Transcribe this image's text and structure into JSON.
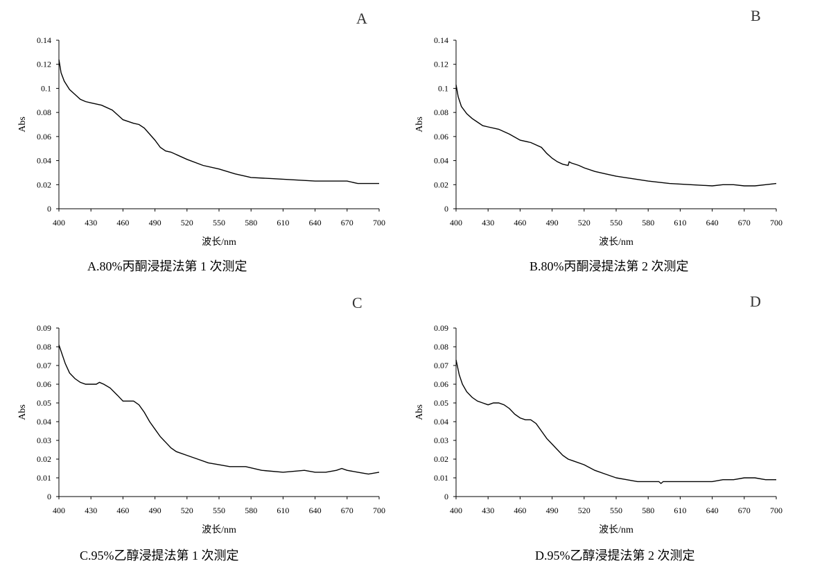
{
  "chart_data": [
    {
      "type": "line",
      "panel": "A",
      "caption": "A.80%丙酮浸提法第 1 次测定",
      "xlabel": "波长/nm",
      "ylabel": "Abs",
      "xlim": [
        400,
        700
      ],
      "ylim": [
        0,
        0.14
      ],
      "xticks": [
        400,
        430,
        460,
        490,
        520,
        550,
        580,
        610,
        640,
        670,
        700
      ],
      "yticks": [
        0,
        0.02,
        0.04,
        0.06,
        0.08,
        0.1,
        0.12,
        0.14
      ],
      "ytick_labels": [
        "0",
        "0.02",
        "0.04",
        "0.06",
        "0.08",
        "0.1",
        "0.12",
        "0.14"
      ],
      "series": [
        {
          "x": [
            400,
            402,
            405,
            410,
            415,
            420,
            425,
            430,
            440,
            450,
            455,
            460,
            470,
            475,
            480,
            485,
            490,
            495,
            500,
            505,
            520,
            535,
            550,
            565,
            580,
            600,
            620,
            640,
            660,
            670,
            680,
            700
          ],
          "y": [
            0.124,
            0.113,
            0.106,
            0.099,
            0.095,
            0.091,
            0.089,
            0.088,
            0.086,
            0.082,
            0.078,
            0.074,
            0.071,
            0.07,
            0.067,
            0.062,
            0.057,
            0.051,
            0.048,
            0.047,
            0.041,
            0.036,
            0.033,
            0.029,
            0.026,
            0.025,
            0.024,
            0.023,
            0.023,
            0.023,
            0.021,
            0.021
          ]
        }
      ]
    },
    {
      "type": "line",
      "panel": "B",
      "caption": "B.80%丙酮浸提法第 2 次测定",
      "xlabel": "波长/nm",
      "ylabel": "Abs",
      "xlim": [
        400,
        700
      ],
      "ylim": [
        0,
        0.14
      ],
      "xticks": [
        400,
        430,
        460,
        490,
        520,
        550,
        580,
        610,
        640,
        670,
        700
      ],
      "yticks": [
        0,
        0.02,
        0.04,
        0.06,
        0.08,
        0.1,
        0.12,
        0.14
      ],
      "ytick_labels": [
        "0",
        "0.02",
        "0.04",
        "0.06",
        "0.08",
        "0.1",
        "0.12",
        "0.14"
      ],
      "series": [
        {
          "x": [
            400,
            402,
            405,
            410,
            415,
            420,
            425,
            430,
            440,
            450,
            460,
            470,
            480,
            485,
            490,
            495,
            500,
            505,
            506,
            508,
            515,
            520,
            530,
            540,
            550,
            565,
            580,
            600,
            620,
            640,
            650,
            660,
            670,
            680,
            690,
            700
          ],
          "y": [
            0.103,
            0.093,
            0.085,
            0.079,
            0.075,
            0.072,
            0.069,
            0.068,
            0.066,
            0.062,
            0.057,
            0.055,
            0.051,
            0.046,
            0.042,
            0.039,
            0.037,
            0.036,
            0.039,
            0.038,
            0.036,
            0.034,
            0.031,
            0.029,
            0.027,
            0.025,
            0.023,
            0.021,
            0.02,
            0.019,
            0.02,
            0.02,
            0.019,
            0.019,
            0.02,
            0.021
          ]
        }
      ]
    },
    {
      "type": "line",
      "panel": "C",
      "caption": "C.95%乙醇浸提法第 1 次测定",
      "xlabel": "波长/nm",
      "ylabel": "Abs",
      "xlim": [
        400,
        700
      ],
      "ylim": [
        0,
        0.09
      ],
      "xticks": [
        400,
        430,
        460,
        490,
        520,
        550,
        580,
        610,
        640,
        670,
        700
      ],
      "yticks": [
        0,
        0.01,
        0.02,
        0.03,
        0.04,
        0.05,
        0.06,
        0.07,
        0.08,
        0.09
      ],
      "ytick_labels": [
        "0",
        "0.01",
        "0.02",
        "0.03",
        "0.04",
        "0.05",
        "0.06",
        "0.07",
        "0.08",
        "0.09"
      ],
      "series": [
        {
          "x": [
            400,
            403,
            406,
            410,
            415,
            420,
            425,
            430,
            435,
            438,
            442,
            448,
            455,
            460,
            465,
            470,
            475,
            480,
            485,
            490,
            495,
            500,
            505,
            510,
            520,
            530,
            540,
            550,
            560,
            575,
            590,
            610,
            630,
            640,
            650,
            660,
            665,
            670,
            680,
            690,
            700
          ],
          "y": [
            0.081,
            0.076,
            0.071,
            0.066,
            0.063,
            0.061,
            0.06,
            0.06,
            0.06,
            0.061,
            0.06,
            0.058,
            0.054,
            0.051,
            0.051,
            0.051,
            0.049,
            0.045,
            0.04,
            0.036,
            0.032,
            0.029,
            0.026,
            0.024,
            0.022,
            0.02,
            0.018,
            0.017,
            0.016,
            0.016,
            0.014,
            0.013,
            0.014,
            0.013,
            0.013,
            0.014,
            0.015,
            0.014,
            0.013,
            0.012,
            0.013
          ]
        }
      ]
    },
    {
      "type": "line",
      "panel": "D",
      "caption": "D.95%乙醇浸提法第 2 次测定",
      "xlabel": "波长/nm",
      "ylabel": "Abs",
      "xlim": [
        400,
        700
      ],
      "ylim": [
        0,
        0.09
      ],
      "xticks": [
        400,
        430,
        460,
        490,
        520,
        550,
        580,
        610,
        640,
        670,
        700
      ],
      "yticks": [
        0,
        0.01,
        0.02,
        0.03,
        0.04,
        0.05,
        0.06,
        0.07,
        0.08,
        0.09
      ],
      "ytick_labels": [
        "0",
        "0.01",
        "0.02",
        "0.03",
        "0.04",
        "0.05",
        "0.06",
        "0.07",
        "0.08",
        "0.09"
      ],
      "series": [
        {
          "x": [
            400,
            403,
            406,
            410,
            415,
            420,
            425,
            430,
            435,
            440,
            445,
            450,
            455,
            460,
            465,
            470,
            475,
            480,
            485,
            490,
            495,
            500,
            505,
            510,
            520,
            530,
            540,
            550,
            560,
            570,
            580,
            590,
            592,
            594,
            600,
            620,
            640,
            650,
            660,
            670,
            680,
            690,
            700
          ],
          "y": [
            0.073,
            0.065,
            0.06,
            0.056,
            0.053,
            0.051,
            0.05,
            0.049,
            0.05,
            0.05,
            0.049,
            0.047,
            0.044,
            0.042,
            0.041,
            0.041,
            0.039,
            0.035,
            0.031,
            0.028,
            0.025,
            0.022,
            0.02,
            0.019,
            0.017,
            0.014,
            0.012,
            0.01,
            0.009,
            0.008,
            0.008,
            0.008,
            0.007,
            0.008,
            0.008,
            0.008,
            0.008,
            0.009,
            0.009,
            0.01,
            0.01,
            0.009,
            0.009
          ]
        }
      ]
    }
  ]
}
